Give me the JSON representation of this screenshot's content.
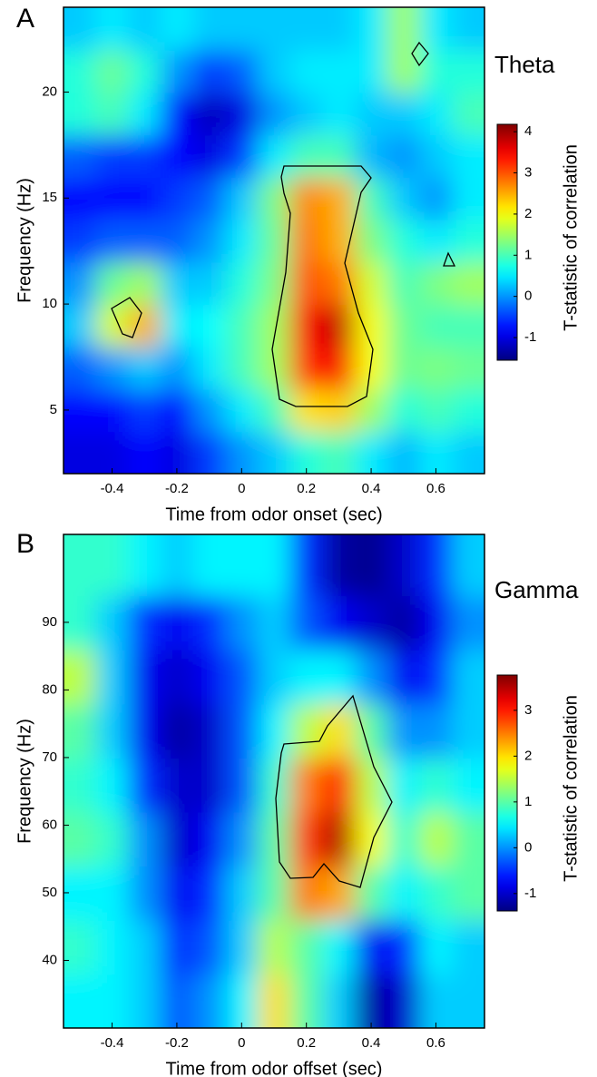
{
  "chart_data": [
    {
      "type": "heatmap",
      "panel_label": "A",
      "title": "Theta",
      "x_label": "Time from odor onset (sec)",
      "y_label": "Frequency (Hz)",
      "colorbar_label": "T-statistic of correlation",
      "colormap": "jet",
      "xlim": [
        -0.55,
        0.75
      ],
      "ylim": [
        2,
        24
      ],
      "clim": [
        -1.55,
        4.18
      ],
      "xticks": [
        -0.4,
        -0.2,
        0,
        0.2,
        0.4,
        0.6
      ],
      "yticks": [
        5,
        10,
        15,
        20
      ],
      "cticks": [
        -1,
        0,
        1,
        2,
        3,
        4
      ],
      "x": [
        -0.5,
        -0.4,
        -0.3,
        -0.2,
        -0.1,
        0,
        0.1,
        0.2,
        0.3,
        0.4,
        0.5,
        0.6,
        0.7
      ],
      "y": [
        3,
        5,
        7,
        9,
        11,
        13,
        15,
        17,
        19,
        21,
        23
      ],
      "z": [
        [
          -1,
          -1,
          -0.8,
          -1,
          -0.5,
          0,
          0.3,
          0.8,
          1,
          0.5,
          0.2,
          0.5,
          0.3
        ],
        [
          -0.8,
          -0.8,
          -0.5,
          -0.8,
          0,
          0.5,
          1,
          2.2,
          2.3,
          1.5,
          0.8,
          1,
          0.8
        ],
        [
          -0.3,
          0,
          0.3,
          0,
          0.5,
          1,
          1.5,
          3.2,
          3.5,
          2,
          1.2,
          1.3,
          1.2
        ],
        [
          0.3,
          1.8,
          2.5,
          0.5,
          0.6,
          1,
          1.5,
          3.5,
          3.8,
          2,
          1.2,
          1,
          1
        ],
        [
          0,
          1.2,
          1.5,
          0.3,
          0.3,
          0.8,
          1.3,
          3,
          2.8,
          1.8,
          1,
          1.3,
          1.5
        ],
        [
          -0.5,
          -0.3,
          -0.3,
          -0.3,
          0,
          0.5,
          1.2,
          2.8,
          2.5,
          1.3,
          0.8,
          0.5,
          0.8
        ],
        [
          -0.8,
          -0.8,
          -0.8,
          -0.5,
          -0.3,
          0.3,
          1.3,
          2.7,
          2.5,
          1,
          0.3,
          0,
          0.5
        ],
        [
          -0.3,
          -0.5,
          -0.5,
          -0.8,
          -1,
          -0.5,
          0.5,
          1,
          1,
          0.2,
          0,
          0.3,
          0.5
        ],
        [
          0.8,
          1,
          0.5,
          -0.8,
          -1.2,
          -1,
          0,
          0.3,
          0.5,
          0.3,
          0.3,
          0.5,
          1
        ],
        [
          0.8,
          1.2,
          0.8,
          0,
          -0.5,
          -0.3,
          0.3,
          0.5,
          0.5,
          0.5,
          1.5,
          0.8,
          0.8
        ],
        [
          0.3,
          0.5,
          0.3,
          0.5,
          0.3,
          0.3,
          0.3,
          0.3,
          0.3,
          0.5,
          1.5,
          0.5,
          0.3
        ]
      ]
    },
    {
      "type": "heatmap",
      "panel_label": "B",
      "title": "Gamma",
      "x_label": "Time from odor offset (sec)",
      "y_label": "Frequency (Hz)",
      "colorbar_label": "T-statistic of correlation",
      "colormap": "jet",
      "xlim": [
        -0.55,
        0.75
      ],
      "ylim": [
        30,
        103
      ],
      "clim": [
        -1.38,
        3.77
      ],
      "xticks": [
        -0.4,
        -0.2,
        0,
        0.2,
        0.4,
        0.6
      ],
      "yticks": [
        40,
        50,
        60,
        70,
        80,
        90
      ],
      "cticks": [
        -1,
        0,
        1,
        2,
        3
      ],
      "x": [
        -0.5,
        -0.4,
        -0.3,
        -0.2,
        -0.1,
        0,
        0.1,
        0.2,
        0.3,
        0.4,
        0.5,
        0.6,
        0.7
      ],
      "y": [
        34,
        42,
        50,
        58,
        66,
        74,
        82,
        90,
        98
      ],
      "z": [
        [
          0.5,
          0.5,
          0.3,
          -0.3,
          0,
          0.5,
          2,
          1,
          0.3,
          -1.2,
          -1,
          0.3,
          0.3
        ],
        [
          0.8,
          0.5,
          0.3,
          -0.5,
          -0.3,
          0.3,
          1.5,
          1,
          0.5,
          -0.8,
          -0.5,
          0.5,
          0.3
        ],
        [
          0.5,
          0.5,
          0,
          -0.8,
          -0.5,
          0.3,
          1,
          2.5,
          2.3,
          1,
          0.5,
          0.8,
          1
        ],
        [
          1,
          0.8,
          0,
          -1,
          -0.8,
          0,
          1,
          2.8,
          3.5,
          1.8,
          0.8,
          1.5,
          1
        ],
        [
          0.8,
          0.5,
          -0.5,
          -1,
          -1,
          -0.3,
          0.8,
          2.5,
          3,
          1.5,
          0.5,
          0.8,
          0.5
        ],
        [
          1,
          0.3,
          -0.8,
          -1.2,
          -1,
          -0.3,
          0.5,
          1.5,
          2,
          1,
          0,
          0,
          0.3
        ],
        [
          1.5,
          0.3,
          -0.8,
          -1,
          -0.8,
          -0.3,
          0.3,
          0.5,
          0.5,
          0,
          -0.8,
          -0.5,
          0.3
        ],
        [
          0.8,
          0.3,
          -0.5,
          -0.8,
          -0.5,
          0,
          0.3,
          -0.3,
          -0.8,
          -1,
          -1.2,
          -0.8,
          0
        ],
        [
          0.8,
          0.8,
          0.5,
          0.3,
          0.5,
          0.5,
          0.5,
          -0.5,
          -1.2,
          -1.3,
          -1,
          -0.5,
          0.3
        ]
      ]
    }
  ]
}
